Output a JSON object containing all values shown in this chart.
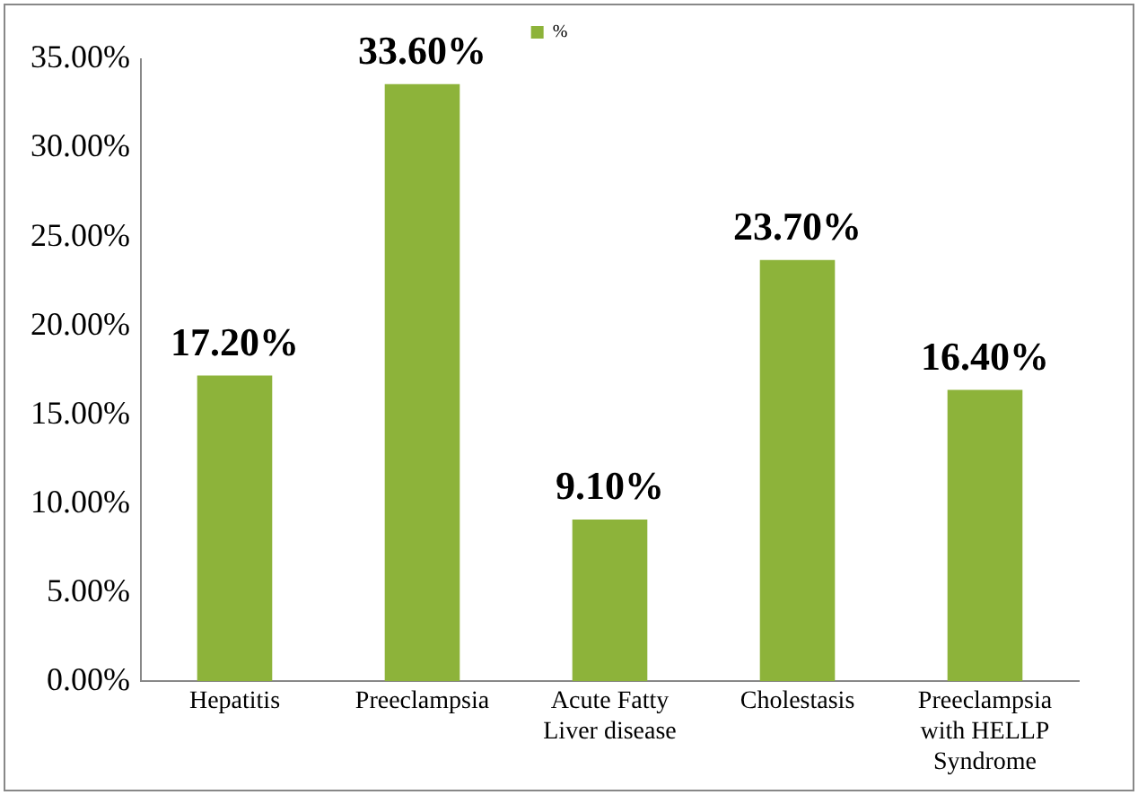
{
  "chart_data": {
    "type": "bar",
    "categories": [
      "Hepatitis",
      "Preeclampsia",
      "Acute Fatty Liver disease",
      "Cholestasis",
      "Preeclampsia with HELLP Syndrome"
    ],
    "series": [
      {
        "name": "%",
        "color": "#8db33a",
        "values": [
          17.2,
          33.6,
          9.1,
          23.7,
          16.4
        ],
        "value_labels": [
          "17.20%",
          "33.60%",
          "9.10%",
          "23.70%",
          "16.40%"
        ]
      }
    ],
    "ylim": [
      0,
      35
    ],
    "yticks": [
      {
        "value": 0,
        "label": "0.00%"
      },
      {
        "value": 5,
        "label": "5.00%"
      },
      {
        "value": 10,
        "label": "10.00%"
      },
      {
        "value": 15,
        "label": "15.00%"
      },
      {
        "value": 20,
        "label": "20.00%"
      },
      {
        "value": 25,
        "label": "25.00%"
      },
      {
        "value": 30,
        "label": "30.00%"
      },
      {
        "value": 35,
        "label": "35.00%"
      }
    ],
    "grid": false,
    "legend": "top"
  }
}
